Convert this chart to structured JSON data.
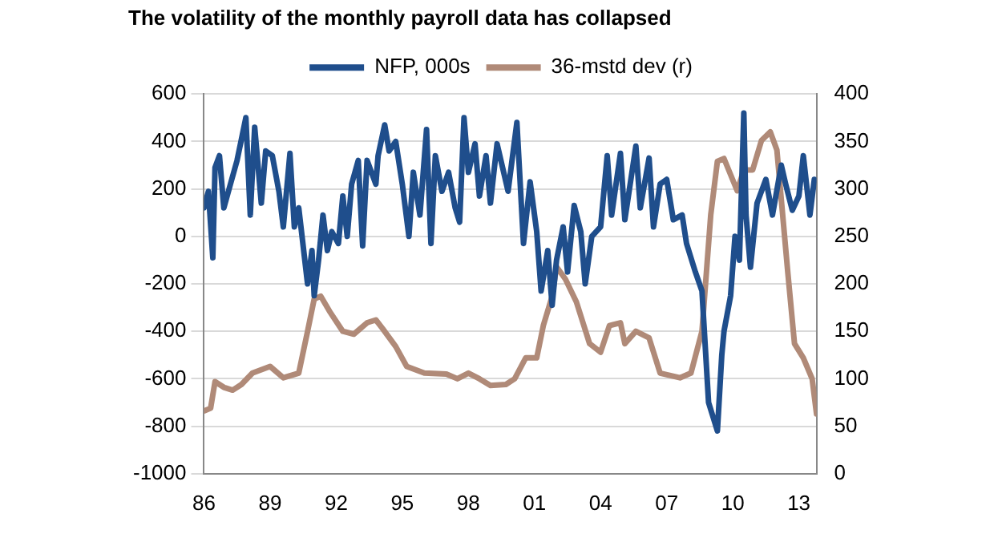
{
  "chart_data": {
    "type": "line",
    "title": "The volatility of the monthly payroll data has collapsed",
    "xlim": [
      1986,
      2013.8
    ],
    "xticks": [
      {
        "value": 1986,
        "label": "86"
      },
      {
        "value": 1989,
        "label": "89"
      },
      {
        "value": 1992,
        "label": "92"
      },
      {
        "value": 1995,
        "label": "95"
      },
      {
        "value": 1998,
        "label": "98"
      },
      {
        "value": 2001,
        "label": "01"
      },
      {
        "value": 2004,
        "label": "04"
      },
      {
        "value": 2007,
        "label": "07"
      },
      {
        "value": 2010,
        "label": "10"
      },
      {
        "value": 2013,
        "label": "13"
      }
    ],
    "ylim": [
      -1000,
      600
    ],
    "yticks": [
      -1000,
      -800,
      -600,
      -400,
      -200,
      0,
      200,
      400,
      600
    ],
    "y2lim": [
      0,
      400
    ],
    "y2ticks": [
      0,
      50,
      100,
      150,
      200,
      250,
      300,
      350,
      400
    ],
    "series": [
      {
        "name": "NFP, 000s",
        "color": "#1f4e8c",
        "x": [
          1986.0,
          1986.2,
          1986.4,
          1986.5,
          1986.7,
          1986.9,
          1987.2,
          1987.5,
          1987.7,
          1987.9,
          1988.1,
          1988.3,
          1988.6,
          1988.8,
          1989.1,
          1989.4,
          1989.6,
          1989.9,
          1990.1,
          1990.3,
          1990.7,
          1990.9,
          1991.0,
          1991.2,
          1991.4,
          1991.6,
          1991.8,
          1992.1,
          1992.3,
          1992.5,
          1992.7,
          1993.0,
          1993.2,
          1993.4,
          1993.8,
          1993.9,
          1994.2,
          1994.4,
          1994.7,
          1995.0,
          1995.3,
          1995.5,
          1995.8,
          1996.1,
          1996.3,
          1996.5,
          1996.8,
          1997.1,
          1997.4,
          1997.6,
          1997.8,
          1998.0,
          1998.3,
          1998.5,
          1998.8,
          1999.0,
          1999.3,
          1999.8,
          2000.2,
          2000.5,
          2000.8,
          2001.1,
          2001.3,
          2001.6,
          2001.8,
          2002.0,
          2002.3,
          2002.5,
          2002.8,
          2003.1,
          2003.3,
          2003.6,
          2004.0,
          2004.3,
          2004.5,
          2004.9,
          2005.1,
          2005.6,
          2005.8,
          2006.2,
          2006.4,
          2006.7,
          2007.0,
          2007.3,
          2007.7,
          2007.9,
          2008.3,
          2008.6,
          2008.9,
          2009.1,
          2009.3,
          2009.5,
          2009.6,
          2009.9,
          2010.1,
          2010.3,
          2010.5,
          2010.6,
          2010.8,
          2011.1,
          2011.5,
          2011.8,
          2012.2,
          2012.4,
          2012.7,
          2013.0,
          2013.2,
          2013.5,
          2013.7
        ],
        "values": [
          120,
          190,
          -90,
          290,
          340,
          120,
          220,
          320,
          410,
          500,
          90,
          460,
          140,
          360,
          340,
          190,
          40,
          350,
          40,
          120,
          -200,
          -60,
          -250,
          -100,
          90,
          -60,
          20,
          -30,
          170,
          0,
          220,
          320,
          -40,
          320,
          220,
          340,
          470,
          360,
          400,
          220,
          0,
          270,
          90,
          450,
          -30,
          340,
          190,
          270,
          120,
          60,
          500,
          270,
          390,
          170,
          340,
          140,
          390,
          190,
          480,
          -30,
          230,
          20,
          -230,
          -60,
          -290,
          -100,
          40,
          -150,
          130,
          20,
          -200,
          0,
          40,
          340,
          90,
          350,
          70,
          380,
          120,
          330,
          40,
          220,
          240,
          70,
          90,
          -30,
          -150,
          -230,
          -700,
          -760,
          -820,
          -500,
          -400,
          -250,
          0,
          -100,
          520,
          90,
          -130,
          140,
          240,
          90,
          300,
          220,
          110,
          170,
          340,
          90,
          240
        ]
      },
      {
        "name": "36-mstd dev (r)",
        "color": "#b08a78",
        "axis": "y2",
        "x": [
          1986.0,
          1986.3,
          1986.5,
          1986.9,
          1987.3,
          1987.7,
          1988.2,
          1989.0,
          1989.6,
          1990.3,
          1990.7,
          1991.0,
          1991.3,
          1991.7,
          1992.3,
          1992.8,
          1993.4,
          1993.8,
          1994.1,
          1994.7,
          1995.2,
          1996.0,
          1997.0,
          1997.5,
          1998.0,
          1998.5,
          1999.0,
          1999.7,
          2000.1,
          2000.6,
          2001.1,
          2001.4,
          2001.8,
          2002.0,
          2002.4,
          2002.9,
          2003.5,
          2004.0,
          2004.4,
          2004.9,
          2005.1,
          2005.6,
          2006.2,
          2006.7,
          2007.6,
          2008.1,
          2008.6,
          2009.0,
          2009.3,
          2009.6,
          2010.2,
          2010.5,
          2010.9,
          2011.3,
          2011.7,
          2012.0,
          2012.5,
          2012.8,
          2013.2,
          2013.6,
          2013.8
        ],
        "values": [
          66,
          69,
          97,
          91,
          88,
          94,
          106,
          113,
          101,
          106,
          150,
          184,
          187,
          171,
          150,
          147,
          159,
          162,
          153,
          134,
          113,
          106,
          105,
          100,
          106,
          100,
          93,
          94,
          100,
          122,
          122,
          156,
          187,
          218,
          205,
          181,
          137,
          128,
          156,
          159,
          137,
          150,
          143,
          106,
          101,
          106,
          150,
          273,
          329,
          332,
          298,
          320,
          320,
          351,
          360,
          341,
          211,
          137,
          122,
          100,
          63
        ]
      }
    ],
    "grid": "y",
    "legend": "top",
    "marker": "none"
  }
}
